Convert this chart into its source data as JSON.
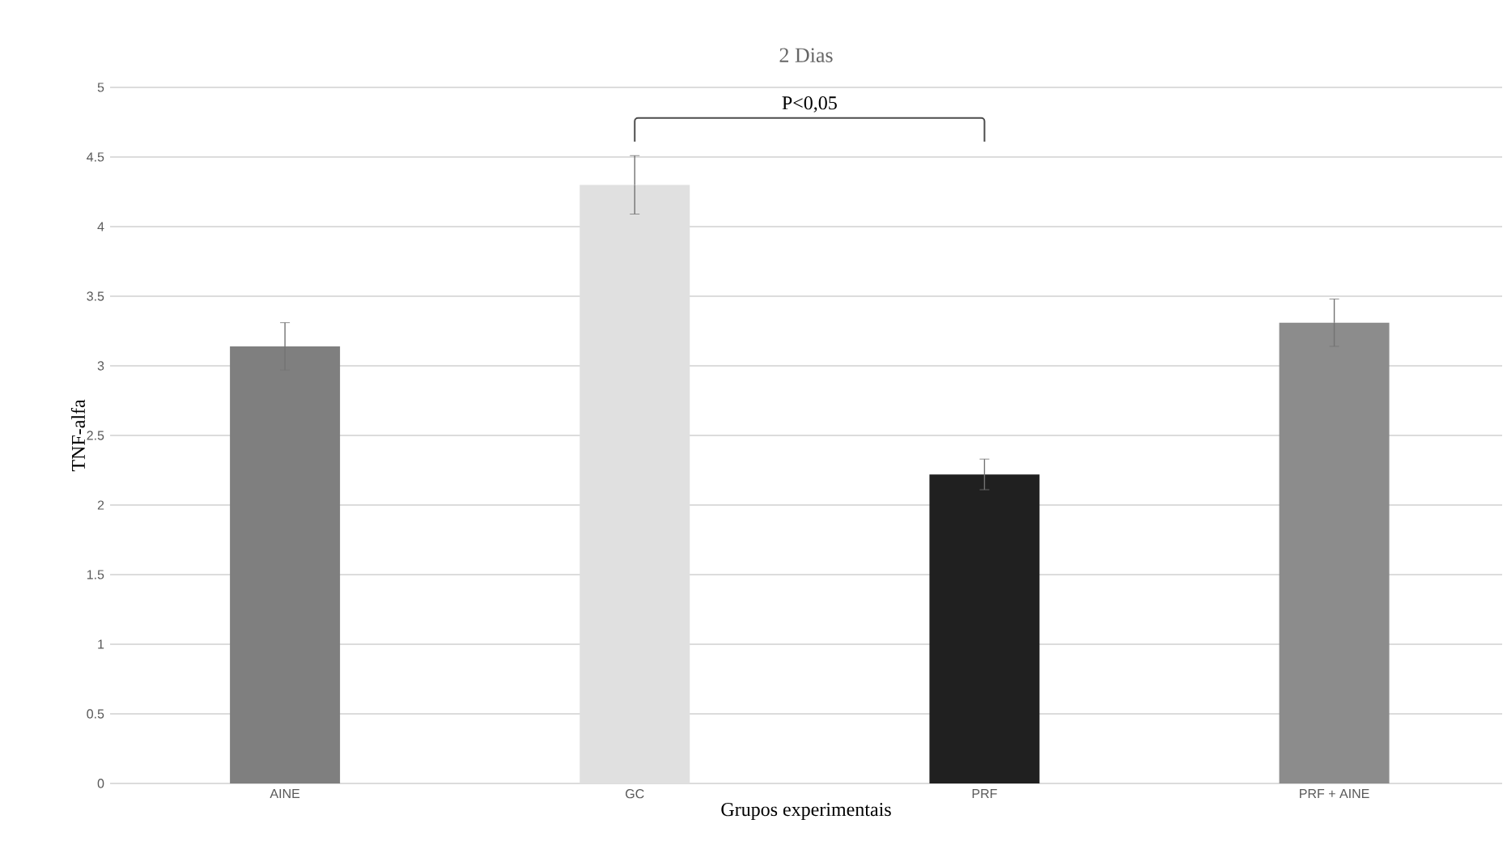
{
  "chart_data": {
    "type": "bar",
    "title": "2 Dias",
    "xlabel": "Grupos experimentais",
    "ylabel": "TNF-alfa",
    "categories": [
      "AINE",
      "GC",
      "PRF",
      "PRF + AINE"
    ],
    "values": [
      3.14,
      4.3,
      2.22,
      3.31
    ],
    "errors": [
      0.17,
      0.21,
      0.11,
      0.17
    ],
    "colors": [
      "#7f7f7f",
      "#e0e0e0",
      "#202020",
      "#8c8c8c"
    ],
    "ylim": [
      0,
      5
    ],
    "yticks": [
      0,
      0.5,
      1,
      1.5,
      2,
      2.5,
      3,
      3.5,
      4,
      4.5,
      5
    ],
    "grid": "y",
    "annotations": [
      "P<0,05"
    ]
  }
}
